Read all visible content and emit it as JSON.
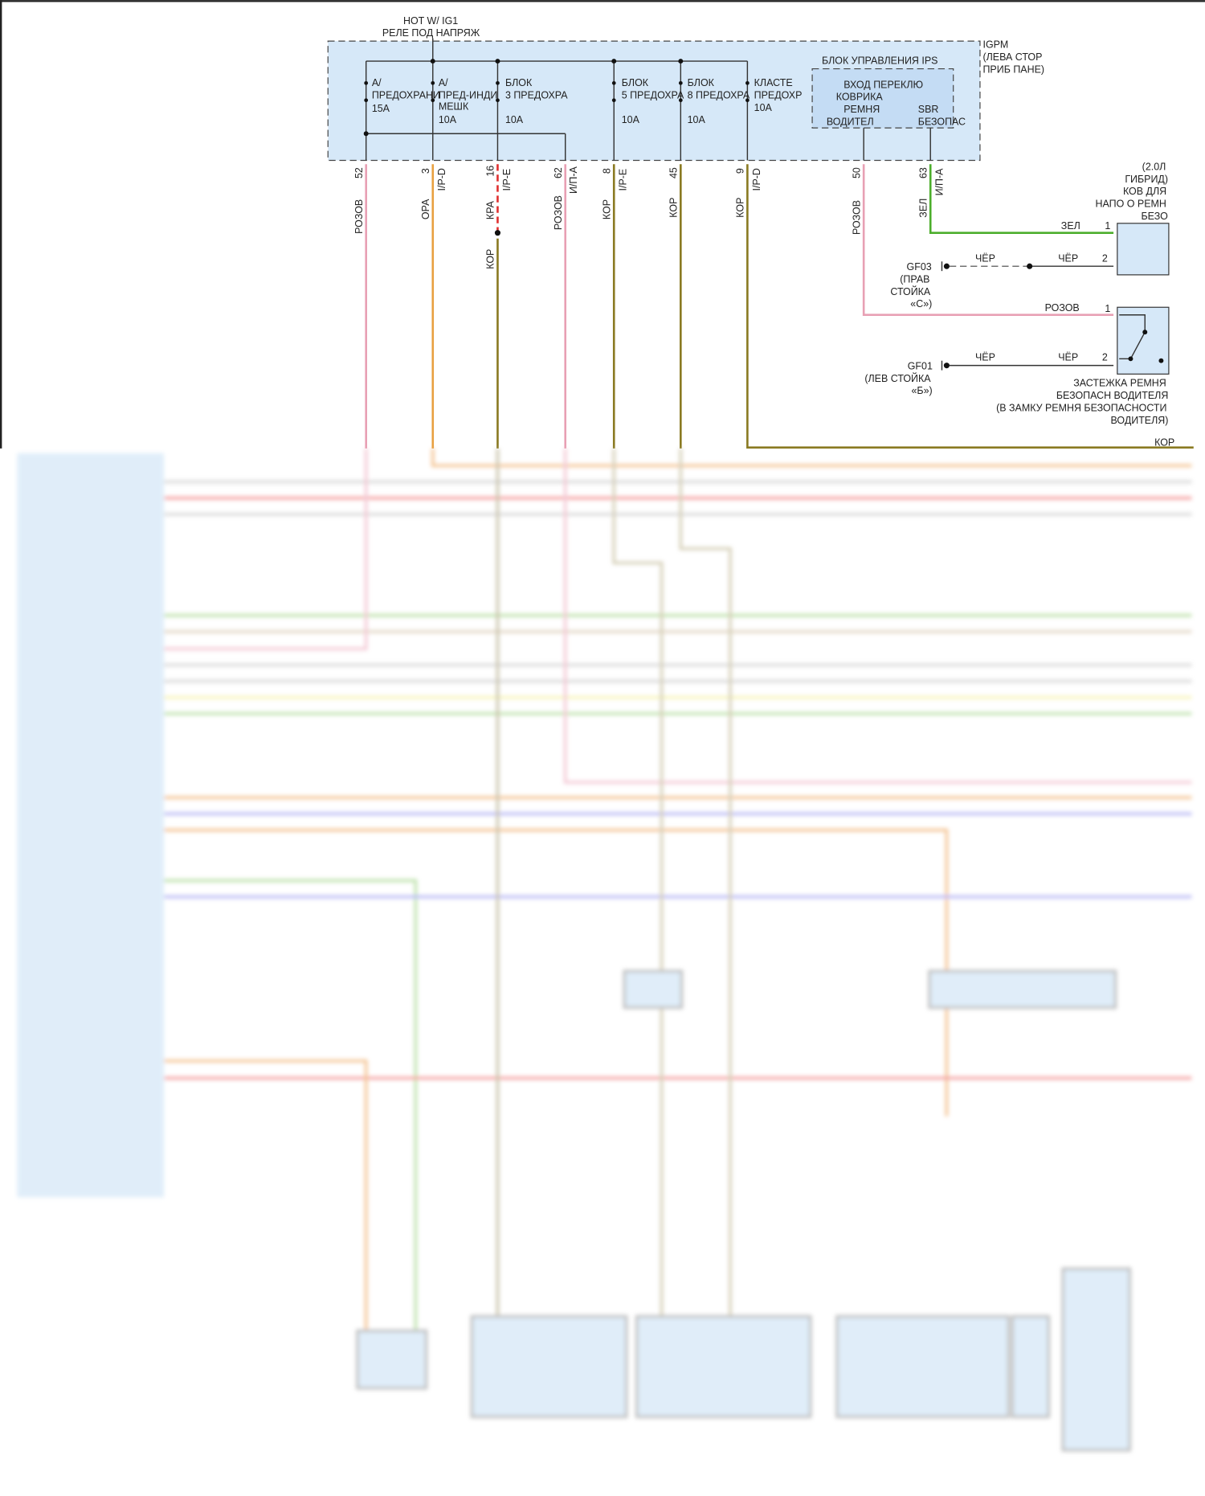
{
  "header": {
    "hot": "HOT W/ IG1",
    "relay": "РЕЛЕ ПОД НАПРЯЖ"
  },
  "igpm": {
    "l1": "IGPM",
    "l2": "(ЛЕВА СТОР",
    "l3": "ПРИБ ПАНЕ)"
  },
  "fuses": [
    {
      "l1": "A/",
      "l2": "ПРЕДОХРАНИ",
      "l3": "15A",
      "l4": ""
    },
    {
      "l1": "A/",
      "l2": "ПРЕД-ИНДИ",
      "l3": "МЕШК",
      "l4": "10A"
    },
    {
      "l1": "БЛОК",
      "l2": "3 ПРЕДОХРА",
      "l3": "",
      "l4": "10A"
    },
    {
      "l1": "БЛОК",
      "l2": "5 ПРЕДОХРА",
      "l3": "",
      "l4": "10A"
    },
    {
      "l1": "БЛОК",
      "l2": "8 ПРЕДОХРА",
      "l3": "",
      "l4": "10A"
    },
    {
      "l1": "КЛАСТЕ",
      "l2": "ПРЕДОХР",
      "l3": "10A",
      "l4": ""
    }
  ],
  "ips": {
    "title": "БЛОК УПРАВЛЕНИЯ IPS",
    "in1": "ВХОД ПЕРЕКЛЮ",
    "in2": "КОВРИКА",
    "in3": "РЕМНЯ",
    "in4": "ВОДИТЕЛ",
    "sbr1": "SBR",
    "sbr2": "БЕЗОПАС"
  },
  "pins": [
    {
      "num": "52",
      "conn": "",
      "color": "РОЗОВ"
    },
    {
      "num": "3",
      "conn": "I/P-D",
      "color": "ОРА"
    },
    {
      "num": "16",
      "conn": "I/P-E",
      "color": "КРА",
      "color2": "КОР"
    },
    {
      "num": "62",
      "conn": "И/П-А",
      "color": "РОЗОВ"
    },
    {
      "num": "8",
      "conn": "I/P-E",
      "color": "КОР"
    },
    {
      "num": "45",
      "conn": "",
      "color": "КОР"
    },
    {
      "num": "9",
      "conn": "I/P-D",
      "color": "КОР"
    },
    {
      "num": "50",
      "conn": "",
      "color": "РОЗОВ"
    },
    {
      "num": "63",
      "conn": "И/П-А",
      "color": "ЗЕЛ"
    }
  ],
  "sensor": {
    "l1": "(2.0Л",
    "l2": "ГИБРИД)",
    "l3": "КОВ ДЛЯ",
    "l4": "НАПО О РЕМН",
    "l5": "БЕЗО",
    "pin1": "1",
    "pin2": "2",
    "w1": "ЗЕЛ",
    "w2a": "ЧЁР",
    "w2b": "ЧЁР"
  },
  "gf03": {
    "id": "GF03",
    "l1": "(ПРАВ",
    "l2": "СТОЙКА",
    "l3": "«С»)"
  },
  "buckle": {
    "pin1": "1",
    "pin2": "2",
    "w1": "РОЗОВ",
    "w2a": "ЧЁР",
    "w2b": "ЧЁР",
    "l1": "ЗАСТЕЖКА РЕМНЯ",
    "l2": "БЕЗОПАСН ВОДИТЕЛЯ",
    "l3": "(В ЗАМКУ РЕМНЯ БЕЗОПАСНОСТИ",
    "l4": "ВОДИТЕЛЯ)"
  },
  "gf01": {
    "id": "GF01",
    "l1": "(ЛЕВ СТОЙКА",
    "l2": "«Б»)"
  },
  "cluster_wire": "КОР",
  "colors": {
    "pink": "#e8a0b4",
    "orange": "#e8a040",
    "olive": "#8a7a22",
    "green": "#4cae2c",
    "red": "#e03030",
    "box": "#d6e8f8"
  }
}
